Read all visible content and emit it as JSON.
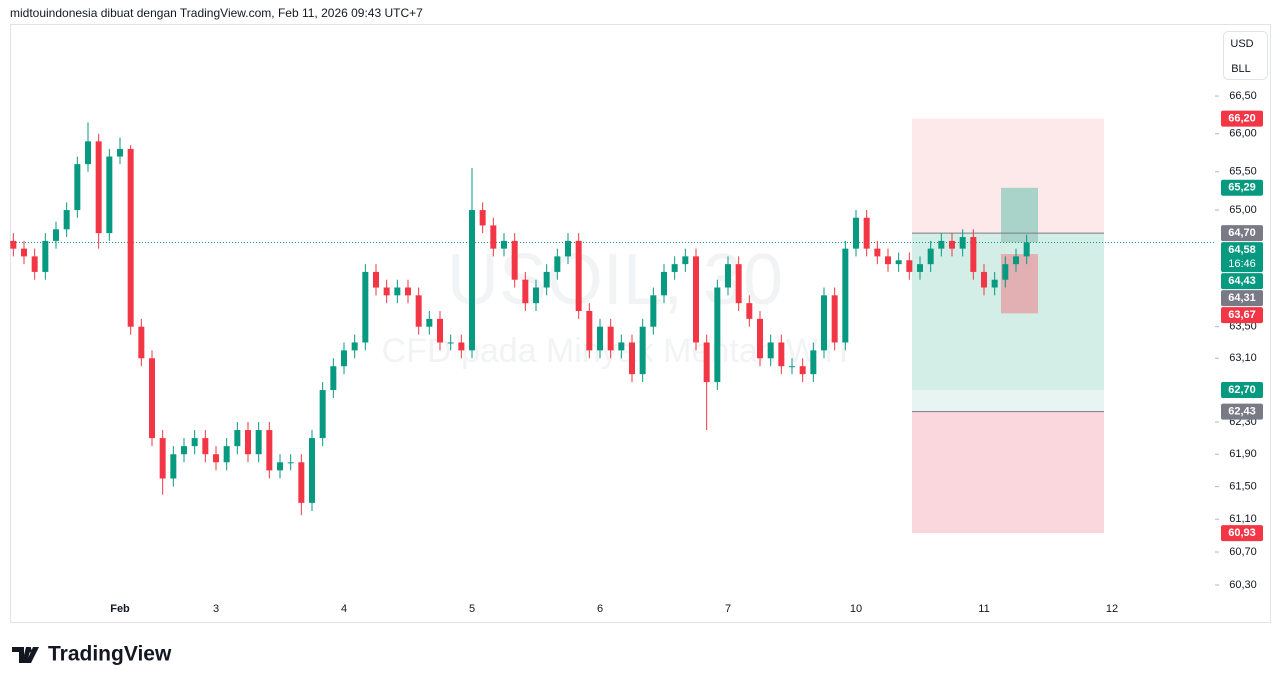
{
  "header": "midtouindonesia dibuat dengan TradingView.com, Feb 11, 2026 09:43 UTC+7",
  "brand": "TradingView",
  "currency_box": [
    "USD",
    "BLL"
  ],
  "chart_data": {
    "type": "candlestick",
    "watermark": "USOIL, 30",
    "watermark_subtitle": "CFD pada Minyak Mentah WTI",
    "up_color": "#089981",
    "down_color": "#f23645",
    "log_scale": true,
    "grid": false,
    "ylim": [
      60.12,
      67.52
    ],
    "yticks": [
      {
        "value": 66.5,
        "label": "66,50"
      },
      {
        "value": 66.0,
        "label": "66,00"
      },
      {
        "value": 65.5,
        "label": "65,50"
      },
      {
        "value": 65.0,
        "label": "65,00"
      },
      {
        "value": 63.5,
        "label": "63,50"
      },
      {
        "value": 63.1,
        "label": "63,10"
      },
      {
        "value": 62.3,
        "label": "62,30"
      },
      {
        "value": 61.9,
        "label": "61,90"
      },
      {
        "value": 61.5,
        "label": "61,50"
      },
      {
        "value": 61.1,
        "label": "61,10"
      },
      {
        "value": 60.7,
        "label": "60,70"
      },
      {
        "value": 60.3,
        "label": "60,30"
      }
    ],
    "categories": [
      null,
      null,
      null,
      null,
      null,
      null,
      null,
      null,
      null,
      null,
      "Feb",
      null,
      null,
      null,
      null,
      null,
      null,
      null,
      null,
      "3",
      null,
      null,
      null,
      null,
      null,
      null,
      null,
      null,
      null,
      null,
      null,
      "4",
      null,
      null,
      null,
      null,
      null,
      null,
      null,
      null,
      null,
      null,
      null,
      "5",
      null,
      null,
      null,
      null,
      null,
      null,
      null,
      null,
      null,
      null,
      null,
      "6",
      null,
      null,
      null,
      null,
      null,
      null,
      null,
      null,
      null,
      null,
      null,
      "7",
      null,
      null,
      null,
      null,
      null,
      null,
      null,
      null,
      null,
      null,
      null,
      "10",
      null,
      null,
      null,
      null,
      null,
      null,
      null,
      null,
      null,
      null,
      null,
      "11",
      null,
      null,
      null,
      null,
      null,
      null,
      null,
      null,
      null,
      null,
      null,
      "12",
      null,
      null,
      null,
      null,
      null,
      null,
      null,
      null,
      null
    ],
    "open": [
      64.6,
      64.5,
      64.4,
      64.2,
      64.6,
      64.75,
      65.0,
      65.6,
      65.9,
      64.7,
      65.7,
      65.8,
      63.5,
      63.1,
      62.1,
      61.6,
      61.9,
      62.0,
      62.1,
      61.9,
      61.8,
      62.0,
      62.2,
      61.9,
      62.2,
      61.7,
      61.8,
      61.8,
      61.3,
      62.1,
      62.7,
      63.0,
      63.2,
      63.3,
      64.2,
      64.0,
      63.9,
      64.0,
      63.9,
      63.5,
      63.6,
      63.3,
      63.3,
      63.2,
      65.0,
      64.8,
      64.5,
      64.6,
      64.1,
      63.8,
      64.0,
      64.2,
      64.4,
      64.6,
      63.7,
      63.2,
      63.5,
      63.2,
      63.3,
      62.9,
      63.5,
      63.9,
      64.2,
      64.3,
      64.4,
      63.3,
      62.8,
      64.0,
      64.3,
      63.8,
      63.6,
      63.1,
      63.3,
      63.0,
      63.0,
      62.9,
      63.2,
      63.9,
      63.3,
      64.5,
      64.9,
      64.5,
      64.4,
      64.3,
      64.35,
      64.2,
      64.3,
      64.5,
      64.6,
      64.5,
      64.65,
      64.2,
      64.0,
      64.1,
      64.3,
      64.4,
      null,
      null,
      null,
      null,
      null,
      null,
      null,
      null,
      null,
      null,
      null,
      null,
      null,
      null,
      null,
      null,
      null
    ],
    "high": [
      64.7,
      64.6,
      64.5,
      64.7,
      64.85,
      65.1,
      65.7,
      66.15,
      66.0,
      65.8,
      65.95,
      65.85,
      63.6,
      63.2,
      62.2,
      62.0,
      62.1,
      62.2,
      62.2,
      62.0,
      62.1,
      62.3,
      62.3,
      62.3,
      62.3,
      61.9,
      61.9,
      61.9,
      62.2,
      62.8,
      63.1,
      63.3,
      63.4,
      64.3,
      64.3,
      64.1,
      64.1,
      64.1,
      64.0,
      63.7,
      63.7,
      63.4,
      63.4,
      65.55,
      65.1,
      64.9,
      64.7,
      64.7,
      64.2,
      64.1,
      64.3,
      64.5,
      64.7,
      64.7,
      63.8,
      63.6,
      63.6,
      63.4,
      63.4,
      63.6,
      64.0,
      64.3,
      64.4,
      64.5,
      64.5,
      63.4,
      64.1,
      64.4,
      64.4,
      63.9,
      63.7,
      63.4,
      63.4,
      63.1,
      63.1,
      63.3,
      64.0,
      64.0,
      64.6,
      65.0,
      65.0,
      64.6,
      64.5,
      64.45,
      64.45,
      64.4,
      64.6,
      64.7,
      64.7,
      64.75,
      64.75,
      64.3,
      64.2,
      64.4,
      64.5,
      64.68,
      null,
      null,
      null,
      null,
      null,
      null,
      null,
      null,
      null,
      null,
      null,
      null,
      null,
      null,
      null,
      null,
      null
    ],
    "low": [
      64.4,
      64.3,
      64.1,
      64.1,
      64.5,
      64.65,
      64.9,
      65.5,
      64.5,
      64.6,
      65.6,
      63.4,
      63.0,
      62.0,
      61.4,
      61.5,
      61.8,
      61.9,
      61.8,
      61.7,
      61.7,
      61.9,
      61.8,
      61.8,
      61.6,
      61.6,
      61.7,
      61.15,
      61.2,
      62.0,
      62.6,
      62.9,
      63.1,
      63.2,
      63.9,
      63.8,
      63.8,
      63.8,
      63.4,
      63.4,
      63.2,
      63.2,
      63.1,
      63.1,
      64.7,
      64.4,
      64.4,
      64.0,
      63.7,
      63.7,
      63.9,
      64.1,
      64.3,
      63.6,
      63.1,
      63.1,
      63.1,
      63.1,
      62.8,
      62.8,
      63.4,
      63.8,
      64.1,
      64.2,
      63.2,
      62.2,
      62.7,
      63.9,
      63.7,
      63.5,
      63.0,
      63.0,
      62.9,
      62.9,
      62.8,
      62.8,
      63.1,
      63.2,
      63.2,
      64.4,
      64.4,
      64.3,
      64.2,
      64.2,
      64.1,
      64.1,
      64.2,
      64.4,
      64.4,
      64.4,
      64.1,
      63.9,
      63.9,
      64.0,
      64.2,
      64.3,
      null,
      null,
      null,
      null,
      null,
      null,
      null,
      null,
      null,
      null,
      null,
      null,
      null,
      null,
      null,
      null,
      null
    ],
    "close": [
      64.5,
      64.4,
      64.2,
      64.6,
      64.75,
      65.0,
      65.6,
      65.9,
      64.7,
      65.7,
      65.8,
      63.5,
      63.1,
      62.1,
      61.6,
      61.9,
      62.0,
      62.1,
      61.9,
      61.8,
      62.0,
      62.2,
      61.9,
      62.2,
      61.7,
      61.8,
      61.8,
      61.3,
      62.1,
      62.7,
      63.0,
      63.2,
      63.3,
      64.2,
      64.0,
      63.9,
      64.0,
      63.9,
      63.5,
      63.6,
      63.3,
      63.3,
      63.2,
      65.0,
      64.8,
      64.5,
      64.6,
      64.1,
      63.8,
      64.0,
      64.2,
      64.4,
      64.6,
      63.7,
      63.2,
      63.5,
      63.2,
      63.3,
      62.9,
      63.5,
      63.9,
      64.2,
      64.3,
      64.4,
      63.3,
      62.8,
      64.0,
      64.3,
      63.8,
      63.6,
      63.1,
      63.3,
      63.0,
      63.0,
      62.9,
      63.2,
      63.9,
      63.3,
      64.5,
      64.9,
      64.5,
      64.4,
      64.3,
      64.35,
      64.2,
      64.3,
      64.5,
      64.6,
      64.5,
      64.65,
      64.2,
      64.0,
      64.1,
      64.3,
      64.4,
      64.58,
      null,
      null,
      null,
      null,
      null,
      null,
      null,
      null,
      null,
      null,
      null,
      null,
      null,
      null,
      null,
      null,
      null
    ],
    "zones": [
      {
        "top": 66.2,
        "bottom": 64.7,
        "color": "#fde9ea"
      },
      {
        "top": 64.7,
        "bottom": 62.7,
        "color": "#d3ede7"
      },
      {
        "top": 62.7,
        "bottom": 62.43,
        "color": "#e8f4f1"
      },
      {
        "top": 62.43,
        "bottom": 60.93,
        "color": "#fad7dc"
      },
      {
        "top": 65.29,
        "bottom": 64.58,
        "color": "#a9d3c9"
      },
      {
        "top": 64.43,
        "bottom": 63.67,
        "color": "#e2b0b3"
      }
    ],
    "price_labels": [
      {
        "value": 66.2,
        "label": "66,20",
        "color": "#f23645"
      },
      {
        "value": 65.29,
        "label": "65,29",
        "color": "#089981"
      },
      {
        "value": 64.7,
        "label": "64,70",
        "color": "#787b86"
      },
      {
        "value": 64.58,
        "label": "64,58",
        "sublabel": "16:46",
        "color": "#089981"
      },
      {
        "value": 64.43,
        "label": "64,43",
        "color": "#089981"
      },
      {
        "value": 64.31,
        "label": "64,31",
        "color": "#787b86"
      },
      {
        "value": 63.67,
        "label": "63,67",
        "color": "#f23645"
      },
      {
        "value": 62.7,
        "label": "62,70",
        "color": "#089981"
      },
      {
        "value": 62.43,
        "label": "62,43",
        "color": "#787b86"
      },
      {
        "value": 60.93,
        "label": "60,93",
        "color": "#f23645"
      }
    ]
  }
}
